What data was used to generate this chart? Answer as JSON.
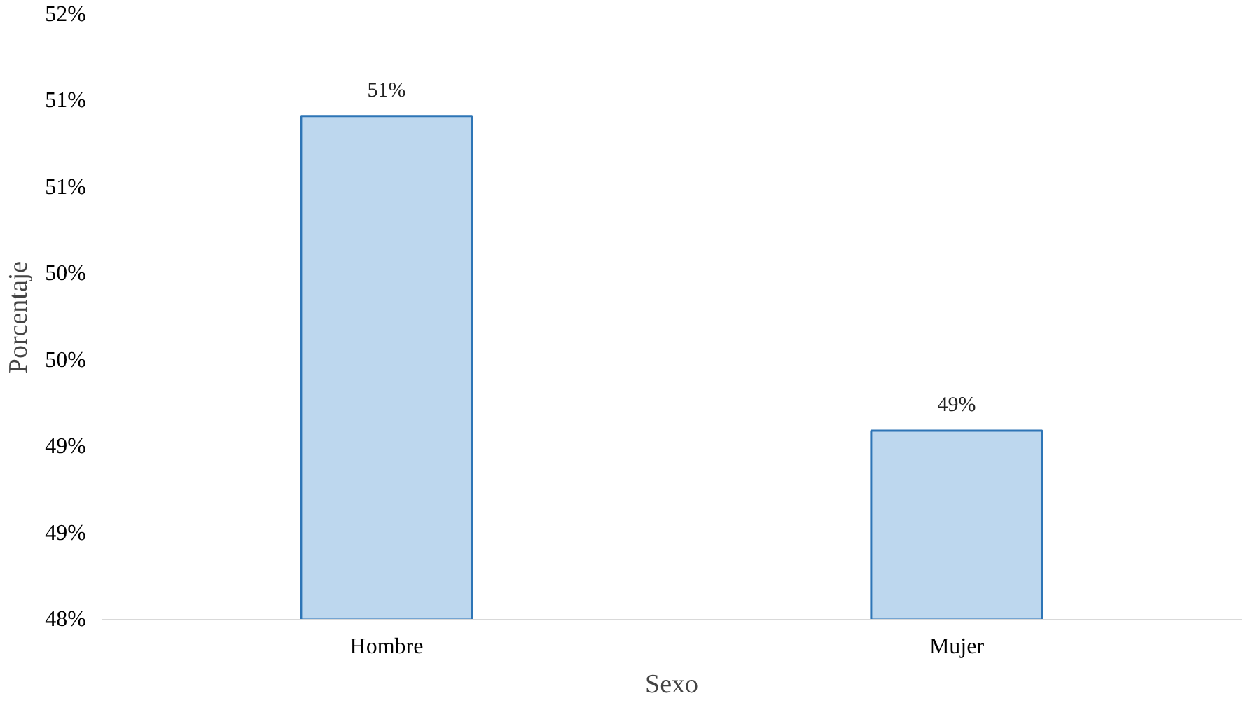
{
  "chart_data": {
    "type": "bar",
    "xlabel": "Sexo",
    "ylabel": "Porcentaje",
    "categories": [
      "Hombre",
      "Mujer"
    ],
    "values": [
      51.33,
      49.25
    ],
    "value_labels": [
      "51%",
      "49%"
    ],
    "color": "#bdd7ee",
    "ylim": [
      48,
      52
    ],
    "yticks": [
      {
        "value": 48,
        "label": "48%"
      },
      {
        "value": 48.571,
        "label": "49%"
      },
      {
        "value": 49.143,
        "label": "49%"
      },
      {
        "value": 49.714,
        "label": "50%"
      },
      {
        "value": 50.286,
        "label": "50%"
      },
      {
        "value": 50.857,
        "label": "51%"
      },
      {
        "value": 51.429,
        "label": "51%"
      },
      {
        "value": 52,
        "label": "52%"
      }
    ],
    "grid": false
  }
}
